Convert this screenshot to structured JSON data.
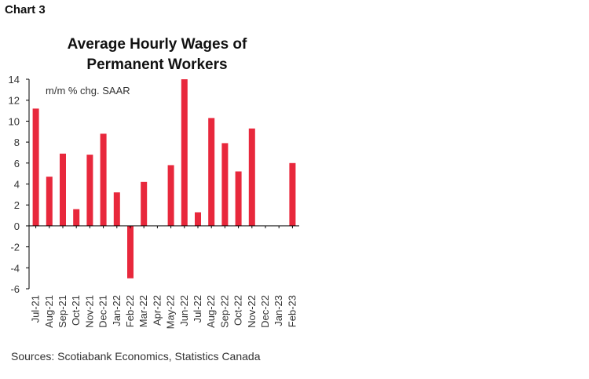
{
  "header": {
    "chart_label": "Chart 3"
  },
  "footer": {
    "sources": "Sources: Scotiabank Economics, Statistics Canada"
  },
  "chart_data": {
    "type": "bar",
    "title_line1": "Average Hourly Wages of",
    "title_line2": "Permanent Workers",
    "unit_label": "m/m % chg. SAAR",
    "ylim": [
      -6,
      14
    ],
    "yticks": [
      14,
      12,
      10,
      8,
      6,
      4,
      2,
      0,
      -2,
      -4,
      -6
    ],
    "grid": false,
    "bar_color": "#e8283c",
    "categories": [
      "Jul-21",
      "Aug-21",
      "Sep-21",
      "Oct-21",
      "Nov-21",
      "Dec-21",
      "Jan-22",
      "Feb-22",
      "Mar-22",
      "Apr-22",
      "May-22",
      "Jun-22",
      "Jul-22",
      "Aug-22",
      "Sep-22",
      "Oct-22",
      "Nov-22",
      "Dec-22",
      "Jan-23",
      "Feb-23"
    ],
    "values": [
      11.2,
      4.7,
      6.9,
      1.6,
      6.8,
      8.8,
      3.2,
      -5.0,
      4.2,
      0.0,
      5.8,
      14.0,
      1.3,
      10.3,
      7.9,
      5.2,
      9.3,
      0.0,
      0.0,
      6.0
    ]
  }
}
